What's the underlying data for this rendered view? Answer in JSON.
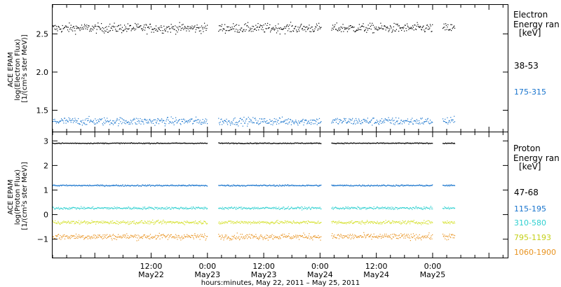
{
  "chart_data": [
    {
      "type": "scatter",
      "name": "electron-panel",
      "ylabel_lines": [
        "ACE EPAM",
        "log(Electron Flux)",
        "[1/(cm²s ster MeV)]"
      ],
      "yticks": [
        "2.5",
        "2.0",
        "1.5"
      ],
      "ytick_values": [
        2.5,
        2.0,
        1.5
      ],
      "ylim": [
        1.22,
        2.88
      ],
      "legend_title_lines": [
        "Electron",
        "Energy ran",
        "[keV]"
      ],
      "series": [
        {
          "label": "38-53",
          "color": "#000000",
          "level": 2.58,
          "spread": 0.06
        },
        {
          "label": "175-315",
          "color": "#1874cd",
          "level": 1.36,
          "spread": 0.05
        }
      ]
    },
    {
      "type": "scatter",
      "name": "proton-panel",
      "ylabel_lines": [
        "ACE EPAM",
        "log(Proton Flux)",
        "[1/(cm²s ster MeV)]"
      ],
      "yticks": [
        "3",
        "2",
        "1",
        "0",
        "−1"
      ],
      "ytick_values": [
        3,
        2,
        1,
        0,
        -1
      ],
      "ylim": [
        -1.75,
        3.35
      ],
      "legend_title_lines": [
        "Proton",
        "Energy ran",
        "[keV]"
      ],
      "series": [
        {
          "label": "47-68",
          "color": "#000000",
          "level": 2.92,
          "spread": 0.02
        },
        {
          "label": "115-195",
          "color": "#1874cd",
          "level": 1.2,
          "spread": 0.03
        },
        {
          "label": "310-580",
          "color": "#2fd0d0",
          "level": 0.28,
          "spread": 0.05
        },
        {
          "label": "795-1193",
          "color": "#d4e02a",
          "level": -0.3,
          "spread": 0.07
        },
        {
          "label": "1060-1900",
          "color": "#e8921e",
          "level": -0.88,
          "spread": 0.12
        }
      ]
    }
  ],
  "x_axis": {
    "range_hours": [
      -9,
      88
    ],
    "ticks": [
      {
        "hour": 12,
        "time": "12:00",
        "date": "May22"
      },
      {
        "hour": 24,
        "time": "0:00",
        "date": "May23"
      },
      {
        "hour": 36,
        "time": "12:00",
        "date": "May23"
      },
      {
        "hour": 48,
        "time": "0:00",
        "date": "May24"
      },
      {
        "hour": 60,
        "time": "12:00",
        "date": "May24"
      },
      {
        "hour": 72,
        "time": "0:00",
        "date": "May25"
      }
    ],
    "data_segments_hours": [
      [
        -9,
        24
      ],
      [
        26.3,
        48.2
      ],
      [
        50.4,
        72
      ],
      [
        74.1,
        76.7
      ]
    ],
    "xlabel": "hours:minutes, May 22, 2011 – May 25, 2011"
  }
}
